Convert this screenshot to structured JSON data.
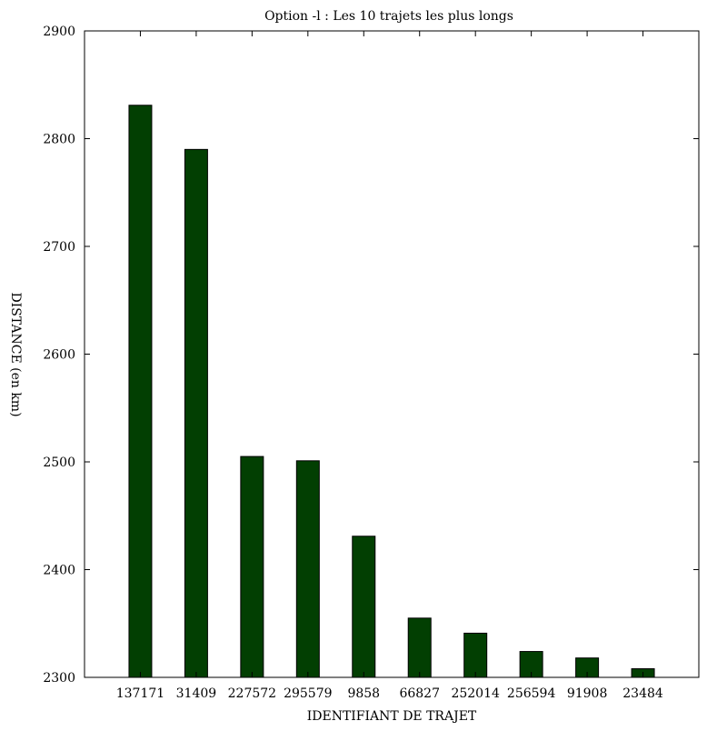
{
  "chart_data": {
    "type": "bar",
    "title": "Option -l : Les 10 trajets les plus longs",
    "xlabel": "IDENTIFIANT DE TRAJET",
    "ylabel": "DISTANCE (en km)",
    "categories": [
      "137171",
      "31409",
      "227572",
      "295579",
      "9858",
      "66827",
      "252014",
      "256594",
      "91908",
      "23484"
    ],
    "values": [
      2831,
      2790,
      2505,
      2501,
      2431,
      2355,
      2341,
      2324,
      2318,
      2308
    ],
    "ylim": [
      2300,
      2900
    ],
    "yticks": [
      2300,
      2400,
      2500,
      2600,
      2700,
      2800,
      2900
    ],
    "bar_color": "#023f02",
    "bar_edge_color": "#000000",
    "grid": false,
    "legend": "none"
  }
}
